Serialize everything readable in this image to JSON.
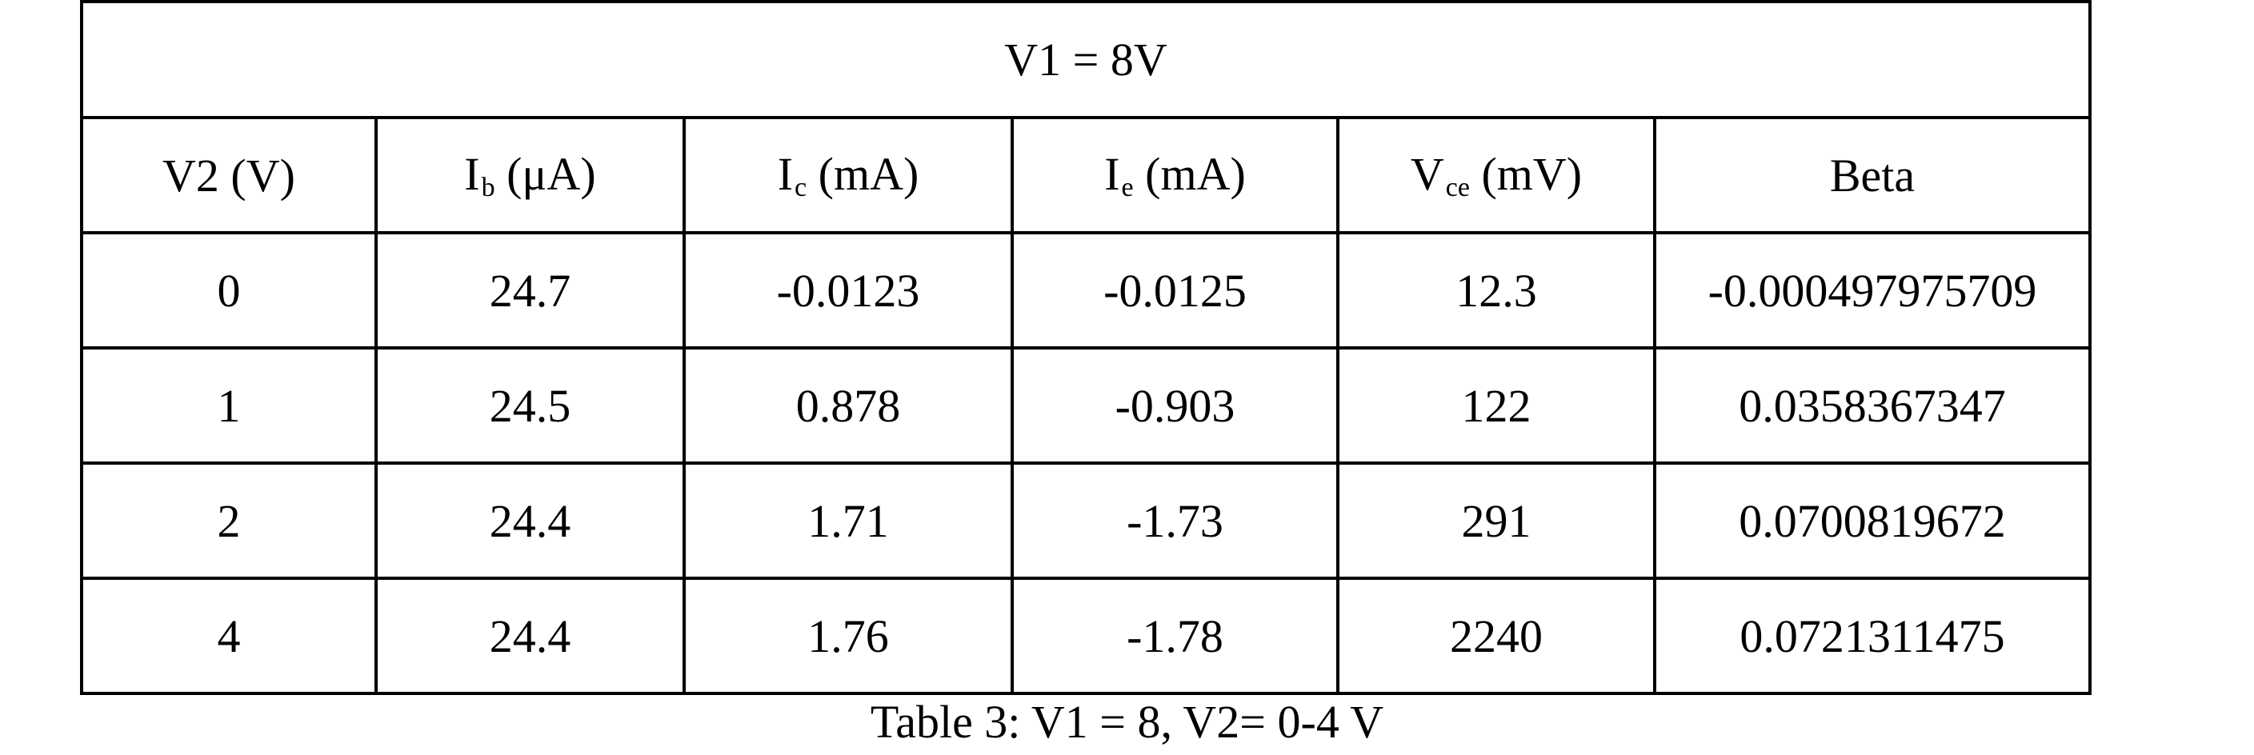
{
  "table": {
    "title": "V1 = 8V",
    "headers": [
      {
        "main": "V2 (V)",
        "sub": "",
        "unit": ""
      },
      {
        "main": "I",
        "sub": "b",
        "unit": " (μA)"
      },
      {
        "main": "I",
        "sub": "c",
        "unit": " (mA)"
      },
      {
        "main": "I",
        "sub": "e",
        "unit": " (mA)"
      },
      {
        "main": "V",
        "sub": "ce",
        "unit": " (mV)"
      },
      {
        "main": "Beta",
        "sub": "",
        "unit": ""
      }
    ],
    "rows": [
      [
        "0",
        "24.7",
        "-0.0123",
        "-0.0125",
        "12.3",
        "-0.000497975709"
      ],
      [
        "1",
        "24.5",
        "0.878",
        "-0.903",
        "122",
        "0.0358367347"
      ],
      [
        "2",
        "24.4",
        "1.71",
        "-1.73",
        "291",
        "0.0700819672"
      ],
      [
        "4",
        "24.4",
        "1.76",
        "-1.78",
        "2240",
        "0.0721311475"
      ]
    ]
  },
  "caption": "Table 3: V1 = 8, V2= 0-4 V"
}
